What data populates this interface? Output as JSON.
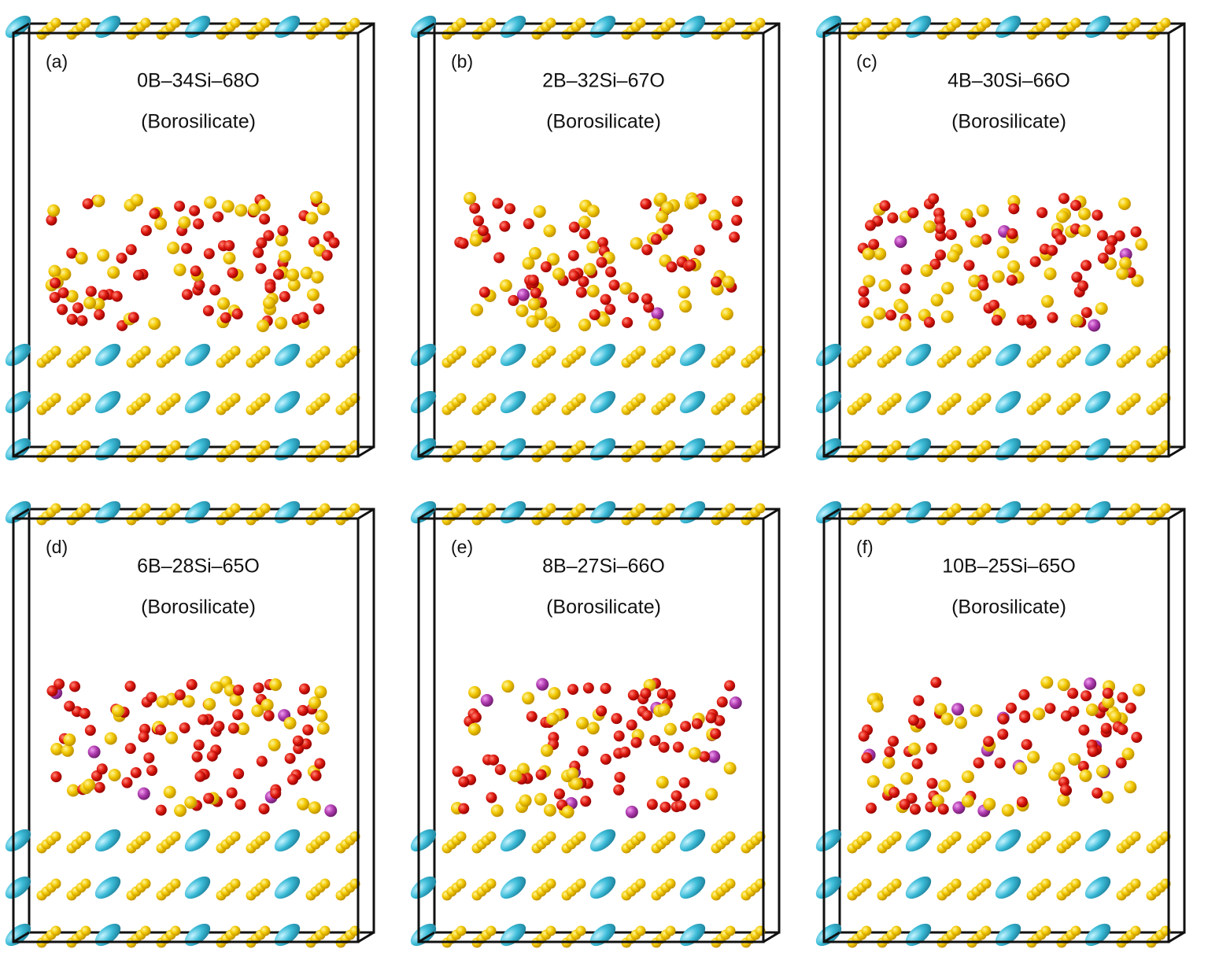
{
  "panels": [
    {
      "label": "(a)",
      "composition": "0B–34Si–68O",
      "material": "(Borosilicate)"
    },
    {
      "label": "(b)",
      "composition": "2B–32Si–67O",
      "material": "(Borosilicate)"
    },
    {
      "label": "(c)",
      "composition": "4B–30Si–66O",
      "material": "(Borosilicate)"
    },
    {
      "label": "(d)",
      "composition": "6B–28Si–65O",
      "material": "(Borosilicate)"
    },
    {
      "label": "(e)",
      "composition": "8B–27Si–66O",
      "material": "(Borosilicate)"
    },
    {
      "label": "(f)",
      "composition": "10B–25Si–65O",
      "material": "(Borosilicate)"
    }
  ]
}
